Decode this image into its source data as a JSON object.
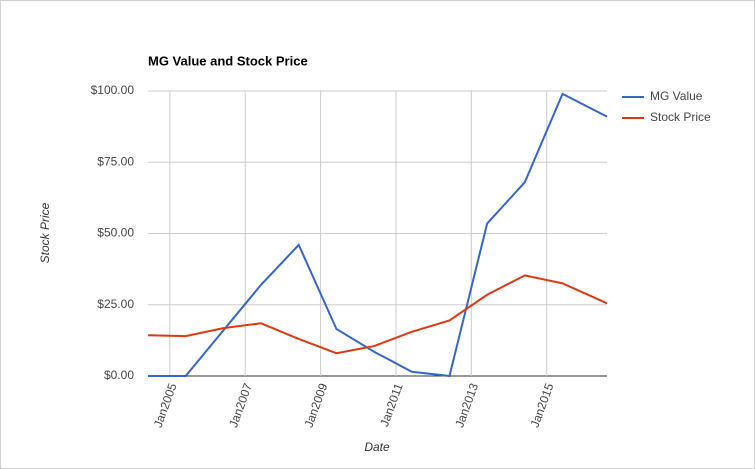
{
  "chart_data": {
    "type": "line",
    "title": "MG Value and Stock Price",
    "x_label": "Date",
    "y_label": "Stock Price",
    "x": [
      2004.42,
      2005.42,
      2006.42,
      2007.42,
      2008.42,
      2009.42,
      2010.42,
      2011.42,
      2012.42,
      2013.42,
      2014.42,
      2015.42,
      2016.6
    ],
    "series": [
      {
        "name": "MG Value",
        "color": "#3366cc",
        "values": [
          0,
          0,
          16,
          32,
          46,
          16.5,
          8.5,
          1.5,
          0,
          53.5,
          68,
          99,
          91
        ]
      },
      {
        "name": "Stock Price",
        "color": "#dc3912",
        "values": [
          14.3,
          14,
          16.8,
          18.5,
          13,
          8,
          10.5,
          15.5,
          19.5,
          28.5,
          35.3,
          32.5,
          25.5
        ]
      }
    ],
    "xlim": [
      2004.42,
      2016.6
    ],
    "xticks": [
      {
        "value": 2005,
        "label": "Jan2005"
      },
      {
        "value": 2007,
        "label": "Jan2007"
      },
      {
        "value": 2009,
        "label": "Jan2009"
      },
      {
        "value": 2011,
        "label": "Jan2011"
      },
      {
        "value": 2013,
        "label": "Jan2013"
      },
      {
        "value": 2015,
        "label": "Jan2015"
      }
    ],
    "ylim": [
      0,
      100
    ],
    "yticks": [
      {
        "value": 0,
        "label": "$0.00"
      },
      {
        "value": 25,
        "label": "$25.00"
      },
      {
        "value": 50,
        "label": "$50.00"
      },
      {
        "value": 75,
        "label": "$75.00"
      },
      {
        "value": 100,
        "label": "$100.00"
      }
    ],
    "grid": true,
    "legend": "right"
  }
}
